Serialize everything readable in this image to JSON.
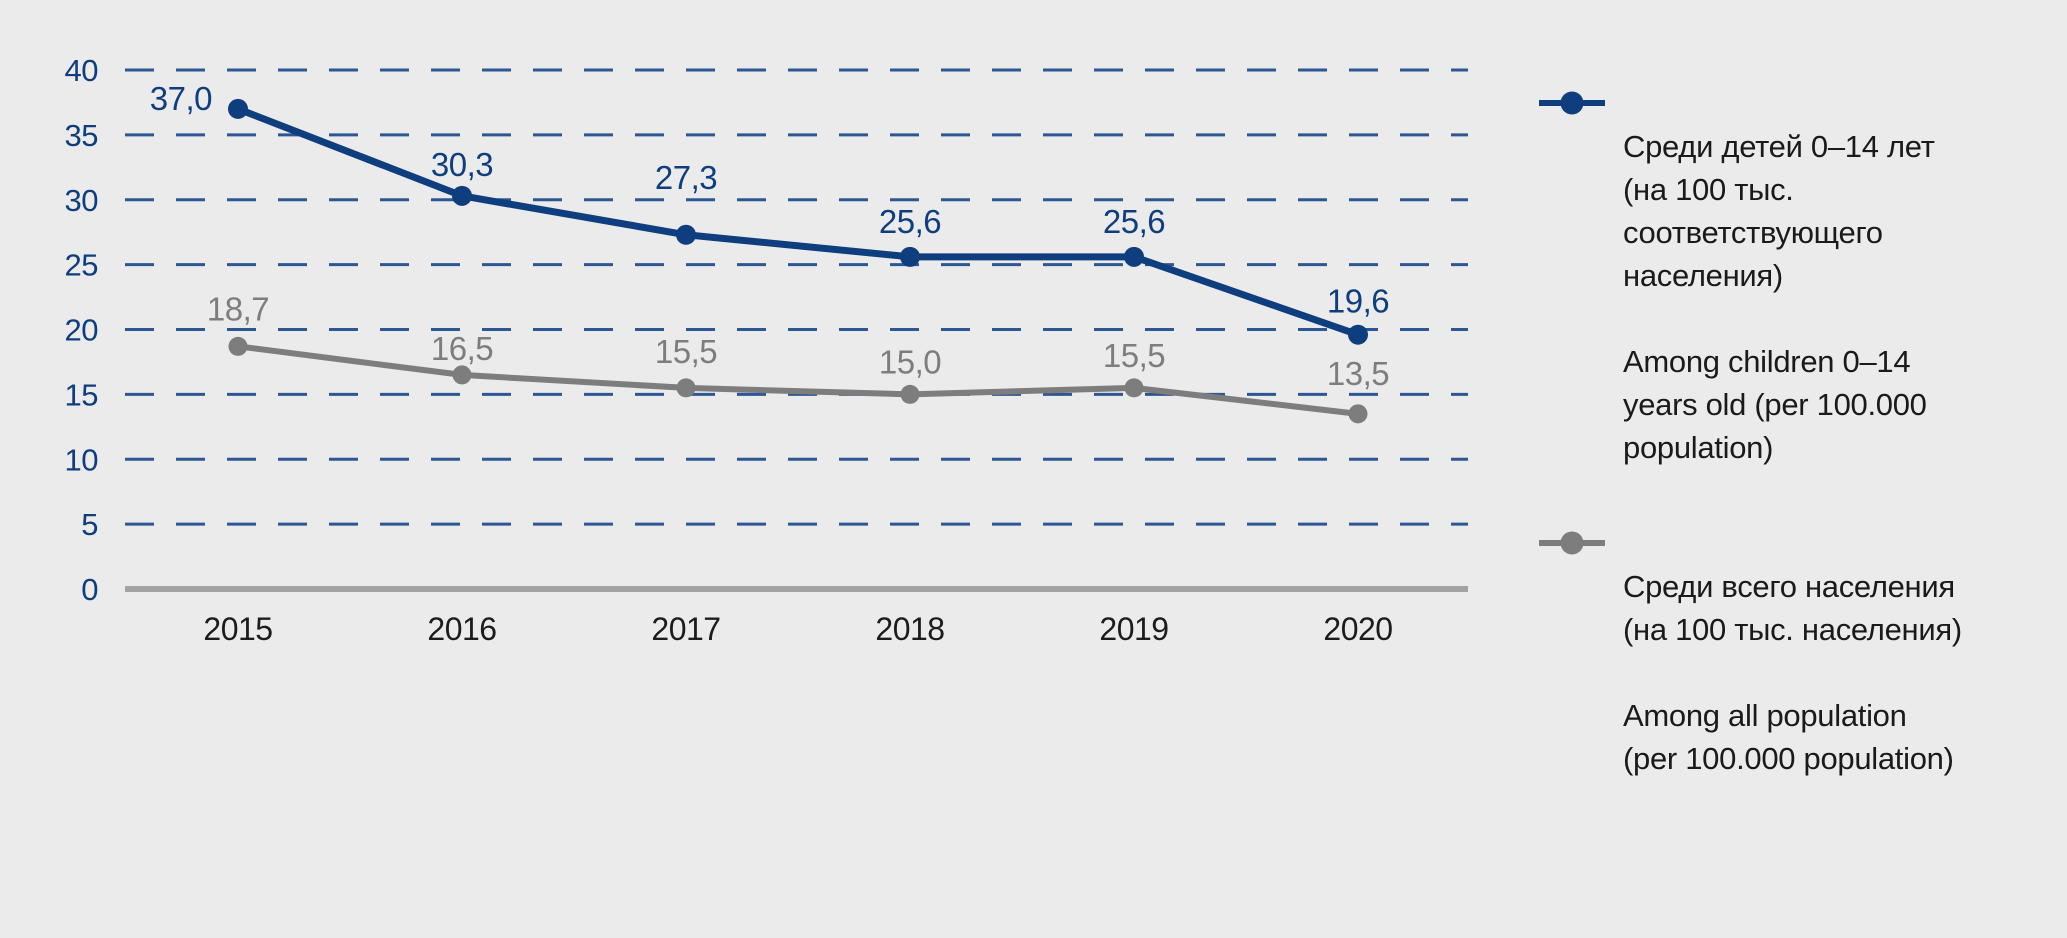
{
  "page": {
    "background_color": "#ebebeb"
  },
  "chart_data": {
    "type": "line",
    "x": [
      2015,
      2016,
      2017,
      2018,
      2019,
      2020
    ],
    "series": [
      {
        "id": "children-0-14",
        "color": "#0e3e7e",
        "values": [
          37.0,
          30.3,
          27.3,
          25.6,
          25.6,
          19.6
        ],
        "labels": [
          "37,0",
          "30,3",
          "27,3",
          "25,6",
          "25,6",
          "19,6"
        ],
        "legend_ru": "Среди детей 0–14 лет\n(на 100 тыс.\nсоответствующего\nнаселения)",
        "legend_en": "Among children 0–14\nyears old (per 100.000\npopulation)"
      },
      {
        "id": "all-population",
        "color": "#7d7d7d",
        "values": [
          18.7,
          16.5,
          15.5,
          15.0,
          15.5,
          13.5
        ],
        "labels": [
          "18,7",
          "16,5",
          "15,5",
          "15,0",
          "15,5",
          "13,5"
        ],
        "legend_ru": "Среди всего населения\n(на 100 тыс. населения)",
        "legend_en": "Among all population\n(per 100.000 population)"
      }
    ],
    "ylim": [
      0,
      40
    ],
    "ytick_step": 5,
    "yticks": [
      "0",
      "5",
      "10",
      "15",
      "20",
      "25",
      "30",
      "35",
      "40"
    ],
    "grid": "horizontal-dashed",
    "grid_color": "#2d5793",
    "axis_line_color": "#a3a3a3",
    "ytick_color": "#0e3e7e",
    "xtick_color": "#1c1c1c",
    "legend_position": "right",
    "decimal_separator": ","
  }
}
